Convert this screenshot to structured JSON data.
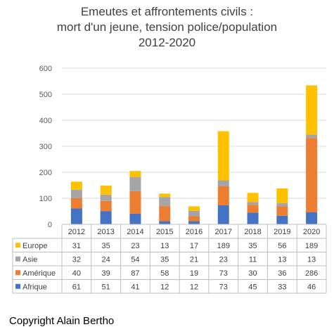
{
  "chart_data": {
    "type": "bar",
    "stacked": true,
    "title_lines": [
      "Emeutes et affrontements civils :",
      "mort d'un jeune, tension police/population",
      "2012-2020"
    ],
    "categories": [
      "2012",
      "2013",
      "2014",
      "2015",
      "2016",
      "2017",
      "2018",
      "2019",
      "2020"
    ],
    "series": [
      {
        "name": "Afrique",
        "color": "#4472C4",
        "values": [
          61,
          51,
          41,
          12,
          12,
          73,
          45,
          33,
          46
        ]
      },
      {
        "name": "Amérique",
        "color": "#ED7D31",
        "values": [
          40,
          39,
          87,
          58,
          19,
          73,
          30,
          36,
          286
        ]
      },
      {
        "name": "Asie",
        "color": "#A5A5A5",
        "values": [
          32,
          24,
          54,
          35,
          21,
          23,
          11,
          13,
          13
        ]
      },
      {
        "name": "Europe",
        "color": "#FFC000",
        "values": [
          31,
          35,
          23,
          13,
          17,
          189,
          35,
          56,
          189
        ]
      }
    ],
    "ylim": [
      0,
      600
    ],
    "yticks": [
      0,
      100,
      200,
      300,
      400,
      500,
      600
    ],
    "grid": true,
    "legend": "data-table"
  },
  "copyright": "Copyright Alain Bertho"
}
